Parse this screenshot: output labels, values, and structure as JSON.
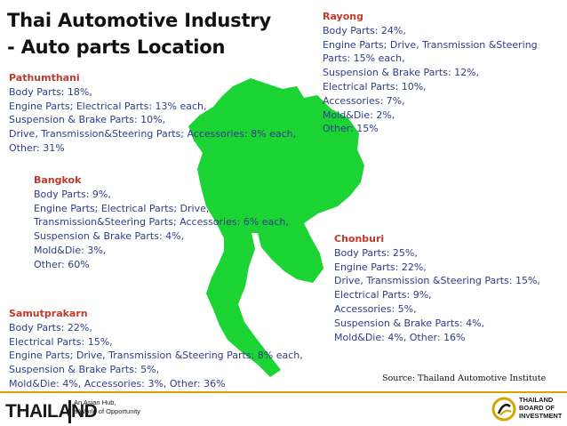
{
  "title": {
    "line1": "Thai Automotive Industry",
    "line2": "- Auto parts Location"
  },
  "map": {
    "fill_color": "#22e03a"
  },
  "regions": {
    "pathumthani": {
      "name": "Pathumthani",
      "lines": [
        "Body Parts: 18%,",
        "Engine Parts; Electrical Parts: 13% each,",
        "Suspension & Brake Parts: 10%,",
        "Drive, Transmission&Steering Parts; Accessories: 8% each,",
        "Other: 31%"
      ]
    },
    "rayong": {
      "name": "Rayong",
      "lines": [
        "Body Parts: 24%,",
        "Engine Parts; Drive, Transmission &Steering",
        "Parts: 15% each,",
        "Suspension & Brake Parts: 12%,",
        "Electrical Parts: 10%,",
        "Accessories: 7%,",
        "Mold&Die: 2%,",
        "Other: 15%"
      ]
    },
    "bangkok": {
      "name": "Bangkok",
      "lines": [
        "Body Parts: 9%,",
        "Engine Parts; Electrical Parts; Drive,",
        "Transmission&Steering Parts; Accessories: 6% each,",
        "Suspension & Brake Parts: 4%,",
        "Mold&Die: 3%,",
        "Other: 60%"
      ]
    },
    "chonburi": {
      "name": "Chonburi",
      "lines": [
        "Body Parts: 25%,",
        "Engine Parts: 22%,",
        "Drive, Transmission &Steering Parts: 15%,",
        "Electrical Parts: 9%,",
        "Accessories: 5%,",
        "Suspension & Brake Parts: 4%,",
        "Mold&Die: 4%, Other: 16%"
      ]
    },
    "samutprakarn": {
      "name": "Samutprakarn",
      "lines": [
        "Body Parts: 22%,",
        "Electrical Parts: 15%,",
        "Engine Parts; Drive, Transmission &Steering Parts: 8% each,",
        "Suspension & Brake Parts: 5%,",
        "Mold&Die: 4%, Accessories: 3%, Other: 36%"
      ]
    }
  },
  "source": "Source: Thailand Automotive Institute",
  "footer": {
    "logo_text": "THAILAND",
    "tagline": [
      "An Asian Hub,",
      "a World of Opportunity"
    ],
    "boi": [
      "THAILAND",
      "BOARD OF",
      "INVESTMENT"
    ]
  }
}
